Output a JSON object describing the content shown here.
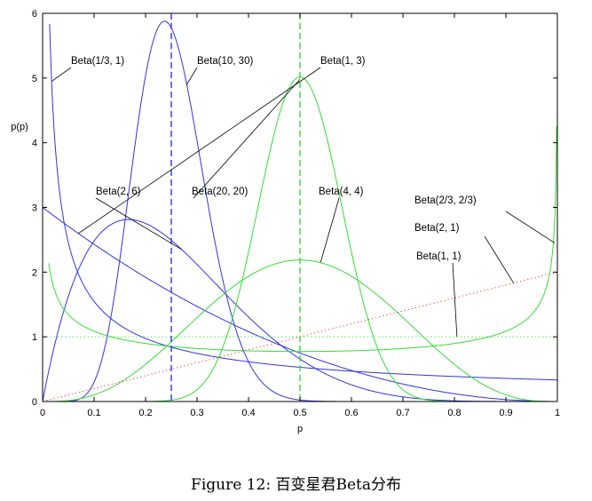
{
  "caption": "Figure 12: 百变星君Beta分布",
  "chart_data": {
    "type": "line",
    "xlabel": "p",
    "ylabel": "p(p)",
    "xlim": [
      0,
      1
    ],
    "ylim": [
      0,
      6
    ],
    "xticks": [
      "0",
      "0.1",
      "0.2",
      "0.3",
      "0.4",
      "0.5",
      "0.6",
      "0.7",
      "0.8",
      "0.9",
      "1"
    ],
    "yticks": [
      "0",
      "1",
      "2",
      "3",
      "4",
      "5",
      "6"
    ],
    "grid": false,
    "legend": "none",
    "colors": {
      "blue": "#3333dd",
      "green": "#33dd33",
      "red": "#ee3333"
    },
    "series": [
      {
        "name": "Beta(1/3, 1)",
        "a": 0.3333,
        "b": 1,
        "color": "blue",
        "style": "solid"
      },
      {
        "name": "Beta(10, 30)",
        "a": 10,
        "b": 30,
        "color": "blue",
        "style": "solid"
      },
      {
        "name": "Beta(1, 3)",
        "a": 1,
        "b": 3,
        "color": "blue",
        "style": "solid"
      },
      {
        "name": "Beta(2, 6)",
        "a": 2,
        "b": 6,
        "color": "blue",
        "style": "solid"
      },
      {
        "name": "Beta(20, 20)",
        "a": 20,
        "b": 20,
        "color": "green",
        "style": "solid"
      },
      {
        "name": "Beta(4, 4)",
        "a": 4,
        "b": 4,
        "color": "green",
        "style": "solid"
      },
      {
        "name": "Beta(2/3, 2/3)",
        "a": 0.6667,
        "b": 0.6667,
        "color": "green",
        "style": "solid"
      },
      {
        "name": "Beta(2, 1)",
        "a": 2,
        "b": 1,
        "color": "red",
        "style": "dotted"
      },
      {
        "name": "Beta(1, 1)",
        "a": 1,
        "b": 1,
        "color": "green",
        "style": "dotted"
      }
    ],
    "reference_lines": [
      {
        "x": 0.25,
        "color": "blue",
        "style": "dashed"
      },
      {
        "x": 0.5,
        "color": "green",
        "style": "dashed"
      }
    ],
    "annotations": [
      {
        "text": "Beta(1/3, 1)",
        "series": 0,
        "target": [
          0.018,
          4.95
        ]
      },
      {
        "text": "Beta(10, 30)",
        "series": 1,
        "target": [
          0.28,
          4.9
        ]
      },
      {
        "text": "Beta(1, 3)",
        "series": 2,
        "target": [
          0.07,
          2.6
        ]
      },
      {
        "text": "Beta(2, 6)",
        "series": 3,
        "target": [
          0.27,
          2.35
        ]
      },
      {
        "text": "Beta(20, 20)",
        "series": 4,
        "target": [
          0.5,
          4.98
        ]
      },
      {
        "text": "Beta(4, 4)",
        "series": 5,
        "target": [
          0.54,
          2.15
        ]
      },
      {
        "text": "Beta(2/3, 2/3)",
        "series": 6,
        "target": [
          0.995,
          2.45
        ]
      },
      {
        "text": "Beta(2, 1)",
        "series": 7,
        "target": [
          0.915,
          1.83
        ]
      },
      {
        "text": "Beta(1, 1)",
        "series": 8,
        "target": [
          0.805,
          1.0
        ]
      }
    ]
  }
}
